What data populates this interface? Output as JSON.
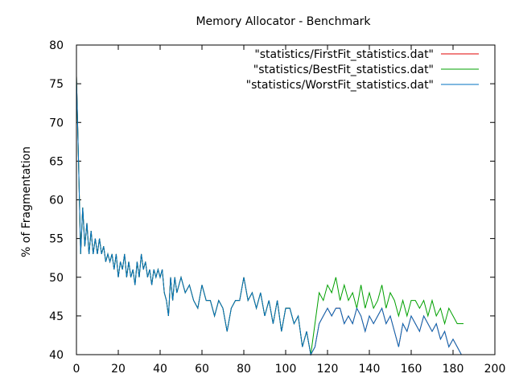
{
  "chart_data": {
    "type": "line",
    "title": "Memory Allocator - Benchmark",
    "xlabel": "",
    "ylabel": "% of Fragmentation",
    "xlim": [
      0,
      200
    ],
    "ylim": [
      40,
      80
    ],
    "xticks": [
      0,
      20,
      40,
      60,
      80,
      100,
      120,
      140,
      160,
      180,
      200
    ],
    "yticks": [
      40,
      45,
      50,
      55,
      60,
      65,
      70,
      75,
      80
    ],
    "grid": false,
    "legend_position": "top-right",
    "series": [
      {
        "name": "\"statistics/FirstFit_statistics.dat\"",
        "color": "#e00000",
        "x": [
          0,
          1,
          2,
          3,
          4,
          5,
          6,
          7,
          8,
          9,
          10,
          11,
          12,
          13,
          14,
          15,
          16,
          17,
          18,
          19,
          20,
          21,
          22,
          23,
          24,
          25,
          26,
          27,
          28,
          29,
          30,
          31,
          32,
          33,
          34,
          35,
          36,
          37,
          38,
          39,
          40,
          41,
          42,
          43,
          44,
          45,
          46,
          47,
          48,
          49,
          50,
          52,
          54,
          56,
          58,
          60,
          62,
          64,
          66,
          68,
          70,
          72,
          74,
          76,
          78,
          80,
          82,
          84,
          86,
          88,
          90,
          92,
          94,
          96,
          98,
          100,
          102,
          104,
          106,
          108,
          110,
          112,
          114,
          116,
          118,
          120,
          122,
          124,
          126,
          128,
          130,
          132,
          134,
          136,
          138,
          140,
          142,
          144,
          146,
          148,
          150,
          152,
          154,
          156,
          158,
          160,
          162,
          164,
          166,
          168,
          170,
          172,
          174,
          176,
          178,
          180,
          182,
          184,
          185
        ],
        "y": [
          76,
          65,
          53,
          59,
          54,
          57,
          53,
          56,
          53,
          55,
          53,
          55,
          53,
          54,
          52,
          53,
          52,
          53,
          51,
          53,
          50,
          52,
          51,
          53,
          50,
          52,
          50,
          51,
          49,
          52,
          50,
          53,
          51,
          52,
          50,
          51,
          49,
          51,
          50,
          51,
          50,
          51,
          48,
          47,
          45,
          50,
          47,
          50,
          48,
          49,
          50,
          48,
          49,
          47,
          46,
          49,
          47,
          47,
          45,
          47,
          46,
          43,
          46,
          47,
          47,
          50,
          47,
          48,
          46,
          48,
          45,
          47,
          44,
          47,
          43,
          46,
          46,
          44,
          45,
          41,
          43,
          40,
          41,
          44,
          45,
          46,
          45,
          46,
          46,
          44,
          45,
          44,
          46,
          45,
          43,
          45,
          44,
          45,
          46,
          44,
          45,
          43,
          41,
          44,
          43,
          45,
          44,
          43,
          45,
          44,
          43,
          44,
          42,
          43,
          41,
          42,
          41,
          40,
          40
        ]
      },
      {
        "name": "\"statistics/BestFit_statistics.dat\"",
        "color": "#00a000",
        "x": [
          0,
          1,
          2,
          3,
          4,
          5,
          6,
          7,
          8,
          9,
          10,
          11,
          12,
          13,
          14,
          15,
          16,
          17,
          18,
          19,
          20,
          21,
          22,
          23,
          24,
          25,
          26,
          27,
          28,
          29,
          30,
          31,
          32,
          33,
          34,
          35,
          36,
          37,
          38,
          39,
          40,
          41,
          42,
          43,
          44,
          45,
          46,
          47,
          48,
          49,
          50,
          52,
          54,
          56,
          58,
          60,
          62,
          64,
          66,
          68,
          70,
          72,
          74,
          76,
          78,
          80,
          82,
          84,
          86,
          88,
          90,
          92,
          94,
          96,
          98,
          100,
          102,
          104,
          106,
          108,
          110,
          112,
          114,
          116,
          118,
          120,
          122,
          124,
          126,
          128,
          130,
          132,
          134,
          136,
          138,
          140,
          142,
          144,
          146,
          148,
          150,
          152,
          154,
          156,
          158,
          160,
          162,
          164,
          166,
          168,
          170,
          172,
          174,
          176,
          178,
          180,
          182,
          184,
          185
        ],
        "y": [
          76,
          65,
          53,
          59,
          54,
          57,
          53,
          56,
          53,
          55,
          53,
          55,
          53,
          54,
          52,
          53,
          52,
          53,
          51,
          53,
          50,
          52,
          51,
          53,
          50,
          52,
          50,
          51,
          49,
          52,
          50,
          53,
          51,
          52,
          50,
          51,
          49,
          51,
          50,
          51,
          50,
          51,
          48,
          47,
          45,
          50,
          47,
          50,
          48,
          49,
          50,
          48,
          49,
          47,
          46,
          49,
          47,
          47,
          45,
          47,
          46,
          43,
          46,
          47,
          47,
          50,
          47,
          48,
          46,
          48,
          45,
          47,
          44,
          47,
          43,
          46,
          46,
          44,
          45,
          41,
          43,
          40,
          44,
          48,
          47,
          49,
          48,
          50,
          47,
          49,
          47,
          48,
          46,
          49,
          46,
          48,
          46,
          47,
          49,
          46,
          48,
          47,
          45,
          47,
          45,
          47,
          47,
          46,
          47,
          45,
          47,
          45,
          46,
          44,
          46,
          45,
          44,
          44,
          44
        ]
      },
      {
        "name": "\"statistics/WorstFit_statistics.dat\"",
        "color": "#0070c0",
        "x": [
          0,
          1,
          2,
          3,
          4,
          5,
          6,
          7,
          8,
          9,
          10,
          11,
          12,
          13,
          14,
          15,
          16,
          17,
          18,
          19,
          20,
          21,
          22,
          23,
          24,
          25,
          26,
          27,
          28,
          29,
          30,
          31,
          32,
          33,
          34,
          35,
          36,
          37,
          38,
          39,
          40,
          41,
          42,
          43,
          44,
          45,
          46,
          47,
          48,
          49,
          50,
          52,
          54,
          56,
          58,
          60,
          62,
          64,
          66,
          68,
          70,
          72,
          74,
          76,
          78,
          80,
          82,
          84,
          86,
          88,
          90,
          92,
          94,
          96,
          98,
          100,
          102,
          104,
          106,
          108,
          110,
          112,
          114,
          116,
          118,
          120,
          122,
          124,
          126,
          128,
          130,
          132,
          134,
          136,
          138,
          140,
          142,
          144,
          146,
          148,
          150,
          152,
          154,
          156,
          158,
          160,
          162,
          164,
          166,
          168,
          170,
          172,
          174,
          176,
          178,
          180,
          182,
          184,
          185
        ],
        "y": [
          76,
          65,
          53,
          59,
          54,
          57,
          53,
          56,
          53,
          55,
          53,
          55,
          53,
          54,
          52,
          53,
          52,
          53,
          51,
          53,
          50,
          52,
          51,
          53,
          50,
          52,
          50,
          51,
          49,
          52,
          50,
          53,
          51,
          52,
          50,
          51,
          49,
          51,
          50,
          51,
          50,
          51,
          48,
          47,
          45,
          50,
          47,
          50,
          48,
          49,
          50,
          48,
          49,
          47,
          46,
          49,
          47,
          47,
          45,
          47,
          46,
          43,
          46,
          47,
          47,
          50,
          47,
          48,
          46,
          48,
          45,
          47,
          44,
          47,
          43,
          46,
          46,
          44,
          45,
          41,
          43,
          40,
          41,
          44,
          45,
          46,
          45,
          46,
          46,
          44,
          45,
          44,
          46,
          45,
          43,
          45,
          44,
          45,
          46,
          44,
          45,
          43,
          41,
          44,
          43,
          45,
          44,
          43,
          45,
          44,
          43,
          44,
          42,
          43,
          41,
          42,
          41,
          40,
          40
        ]
      }
    ]
  }
}
